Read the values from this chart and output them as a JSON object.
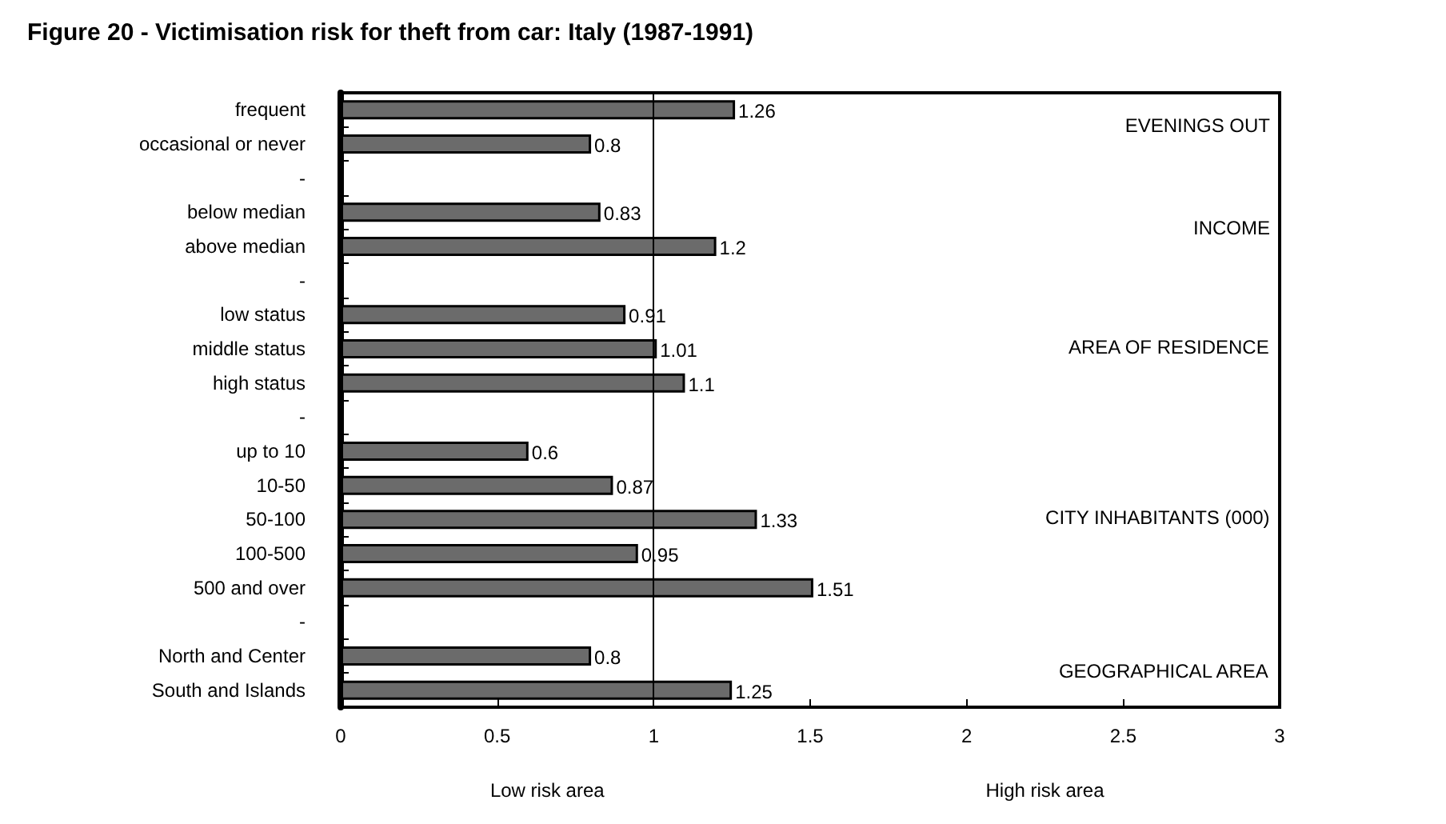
{
  "chart_data": {
    "type": "bar",
    "orientation": "horizontal",
    "title": "Figure 20 - Victimisation risk for theft from car: Italy (1987-1991)",
    "categories": [
      "frequent",
      "occasional or never",
      "-",
      "below median",
      "above median",
      "-",
      "low status",
      "middle status",
      "high status",
      "-",
      "up to 10",
      "10-50",
      "50-100",
      "100-500",
      "500 and over",
      "-",
      "North and Center",
      "South and Islands"
    ],
    "values": [
      1.26,
      0.8,
      null,
      0.83,
      1.2,
      null,
      0.91,
      1.01,
      1.1,
      null,
      0.6,
      0.87,
      1.33,
      0.95,
      1.51,
      null,
      0.8,
      1.25
    ],
    "color": "#6b6b6b",
    "data_labels": true,
    "xlim": [
      0,
      3
    ],
    "xticks": [
      0,
      0.5,
      1,
      1.5,
      2,
      2.5,
      3
    ],
    "grid": false,
    "ref_lines": [
      {
        "axis": "x",
        "value": 1,
        "color": "#000000"
      }
    ],
    "annotations": [
      "EVENINGS OUT",
      "INCOME",
      "AREA OF RESIDENCE",
      "CITY INHABITANTS (000)",
      "GEOGRAPHICAL AREA",
      "Low risk area",
      "High risk area"
    ]
  }
}
